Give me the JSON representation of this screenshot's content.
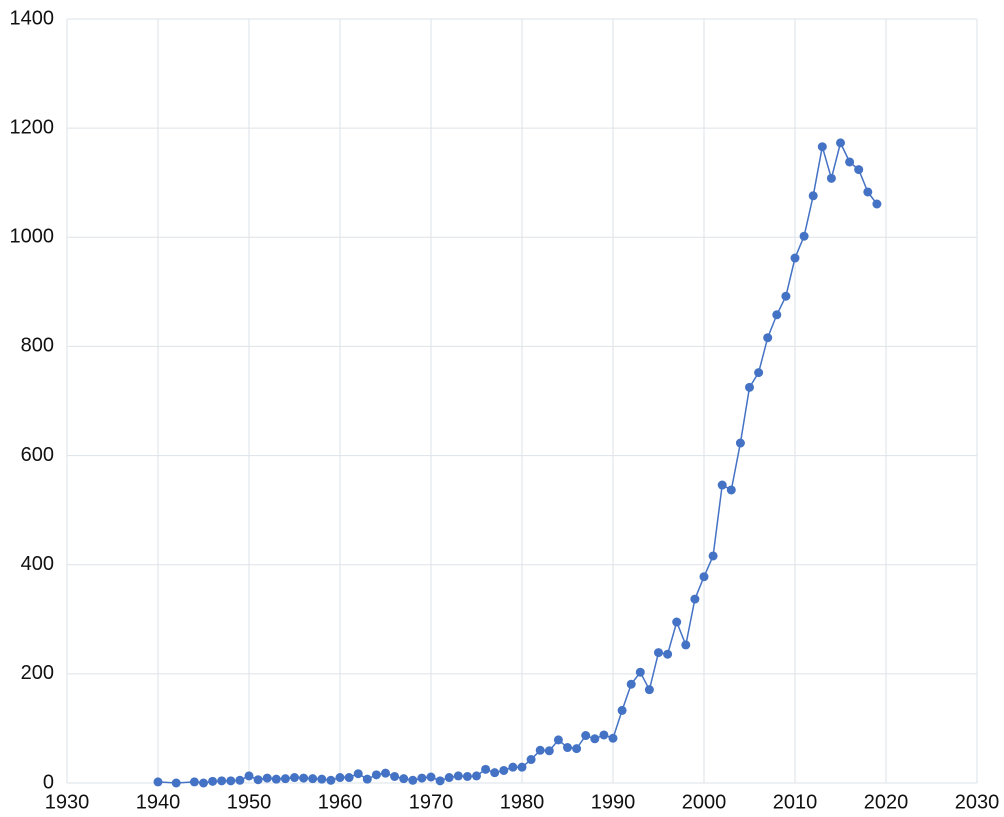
{
  "chart_data": {
    "type": "line",
    "color": "#4472c4",
    "grid": true,
    "markers": true,
    "xlim": [
      1930,
      2030
    ],
    "xticks": [
      1930,
      1940,
      1950,
      1960,
      1970,
      1980,
      1990,
      2000,
      2010,
      2020,
      2030
    ],
    "ylim": [
      0,
      1400
    ],
    "yticks": [
      0,
      200,
      400,
      600,
      800,
      1000,
      1200,
      1400
    ],
    "x": [
      1940,
      1942,
      1944,
      1945,
      1946,
      1947,
      1948,
      1949,
      1950,
      1951,
      1952,
      1953,
      1954,
      1955,
      1956,
      1957,
      1958,
      1959,
      1960,
      1961,
      1962,
      1963,
      1964,
      1965,
      1966,
      1967,
      1968,
      1969,
      1970,
      1971,
      1972,
      1973,
      1974,
      1975,
      1976,
      1977,
      1978,
      1979,
      1980,
      1981,
      1982,
      1983,
      1984,
      1985,
      1986,
      1987,
      1988,
      1989,
      1990,
      1991,
      1992,
      1993,
      1994,
      1995,
      1996,
      1997,
      1998,
      1999,
      2000,
      2001,
      2002,
      2003,
      2004,
      2005,
      2006,
      2007,
      2008,
      2009,
      2010,
      2011,
      2012,
      2013,
      2014,
      2015,
      2016,
      2017,
      2018,
      2019
    ],
    "values": [
      2,
      0,
      2,
      0,
      3,
      4,
      4,
      5,
      13,
      6,
      9,
      7,
      8,
      10,
      9,
      8,
      7,
      5,
      10,
      10,
      17,
      7,
      15,
      18,
      12,
      8,
      5,
      9,
      11,
      4,
      10,
      13,
      12,
      13,
      25,
      19,
      23,
      29,
      29,
      43,
      60,
      59,
      79,
      65,
      63,
      87,
      81,
      88,
      82,
      133,
      181,
      203,
      171,
      239,
      236,
      295,
      253,
      337,
      378,
      416,
      546,
      537,
      623,
      725,
      752,
      816,
      858,
      892,
      962,
      1002,
      1076,
      1166,
      1108,
      1173,
      1138,
      1124,
      1083,
      1061
    ]
  }
}
